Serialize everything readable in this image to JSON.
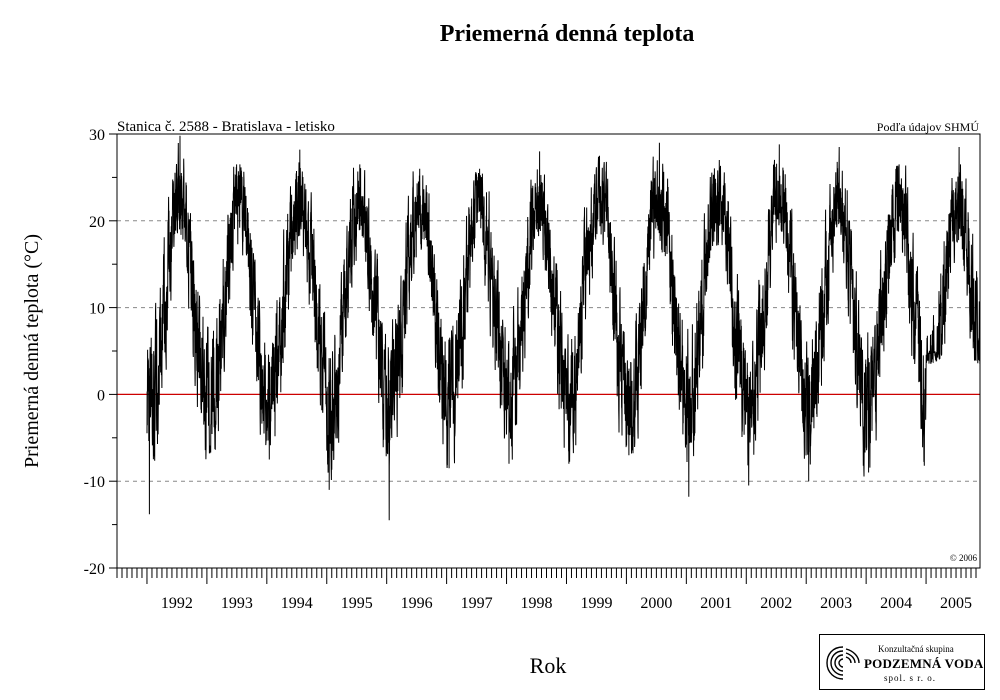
{
  "chart_data": {
    "type": "line",
    "title": "Priemerná denná teplota",
    "subtitle": "Stanica č. 2588 - Bratislava - letisko",
    "source_note": "Podľa údajov SHMÚ",
    "copyright": "© 2006",
    "xlabel": "Rok",
    "ylabel": "Priemerná denná teplota (°C)",
    "ylim": [
      -20,
      30
    ],
    "yticks": [
      -20,
      -10,
      0,
      10,
      20,
      30
    ],
    "ytick_labels": [
      "-20",
      "-10",
      "0",
      "10",
      "20",
      "30"
    ],
    "xlim": [
      1991.5,
      2005.9
    ],
    "xtick_labels": [
      "1992",
      "1993",
      "1994",
      "1995",
      "1996",
      "1997",
      "1998",
      "1999",
      "2000",
      "2001",
      "2002",
      "2003",
      "2004",
      "2005"
    ],
    "grid": "dashed horizontal at -10, 10, 20",
    "zero_line_color": "#cc0000",
    "line_color": "#000000",
    "series": [
      {
        "seasonal_mean": 10.5,
        "seasonal_amplitude": 11.5,
        "yearly_peaks": [
          {
            "year": 1992,
            "max": 29.8,
            "min": -13.8
          },
          {
            "year": 1993,
            "max": 26.5,
            "min": -6.8
          },
          {
            "year": 1994,
            "max": 28.2,
            "min": -7.5
          },
          {
            "year": 1995,
            "max": 26.5,
            "min": -11.0
          },
          {
            "year": 1996,
            "max": 26.0,
            "min": -14.5
          },
          {
            "year": 1997,
            "max": 26.0,
            "min": -8.5
          },
          {
            "year": 1998,
            "max": 28.0,
            "min": -8.0
          },
          {
            "year": 1999,
            "max": 27.5,
            "min": -8.0
          },
          {
            "year": 2000,
            "max": 29.0,
            "min": -7.0
          },
          {
            "year": 2001,
            "max": 27.0,
            "min": -11.8
          },
          {
            "year": 2002,
            "max": 28.8,
            "min": -10.5
          },
          {
            "year": 2003,
            "max": 28.5,
            "min": -10.0
          },
          {
            "year": 2004,
            "max": 26.5,
            "min": -9.0
          },
          {
            "year": 2005,
            "max": 28.5,
            "min": 3.5
          }
        ]
      }
    ]
  },
  "logo": {
    "line1": "Konzultačná skupina",
    "line2": "PODZEMNÁ VODA",
    "line3": "spol. s r. o."
  }
}
